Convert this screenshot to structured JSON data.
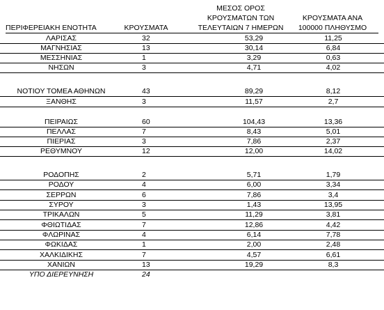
{
  "headers": {
    "region": "ΠΕΡΙΦΕΡΕΙΑΚΗ ΕΝΟΤΗΤΑ",
    "cases": "ΚΡΟΥΣΜΑΤΑ",
    "avg_lines": [
      "ΜΕΣΟΣ ΟΡΟΣ",
      "ΚΡΟΥΣΜΑΤΩΝ ΤΩΝ",
      "ΤΕΛΕΥΤΑΙΩΝ 7 ΗΜΕΡΩΝ"
    ],
    "per_lines": [
      "ΚΡΟΥΣΜΑΤΑ ΑΝΑ",
      "100000 ΠΛΗΘΥΣΜΟ"
    ]
  },
  "rows": [
    {
      "region": "ΛΑΡΙΣΑΣ",
      "cases": "32",
      "avg": "53,29",
      "per100k": "11,25"
    },
    {
      "region": "ΜΑΓΝΗΣΙΑΣ",
      "cases": "13",
      "avg": "30,14",
      "per100k": "6,84"
    },
    {
      "region": "ΜΕΣΣΗΝΙΑΣ",
      "cases": "1",
      "avg": "3,29",
      "per100k": "0,63"
    },
    {
      "region": "ΝΗΣΩΝ",
      "cases": "3",
      "avg": "4,71",
      "per100k": "4,02"
    },
    {
      "region": "ΝΟΤΙΟΥ ΤΟΜΕΑ ΑΘΗΝΩΝ",
      "cases": "43",
      "avg": "89,29",
      "per100k": "8,12"
    },
    {
      "region": "ΞΑΝΘΗΣ",
      "cases": "3",
      "avg": "11,57",
      "per100k": "2,7"
    },
    {
      "region": "ΠΕΙΡΑΙΩΣ",
      "cases": "60",
      "avg": "104,43",
      "per100k": "13,36"
    },
    {
      "region": "ΠΕΛΛΑΣ",
      "cases": "7",
      "avg": "8,43",
      "per100k": "5,01"
    },
    {
      "region": "ΠΙΕΡΙΑΣ",
      "cases": "3",
      "avg": "7,86",
      "per100k": "2,37"
    },
    {
      "region": "ΡΕΘΥΜΝΟΥ",
      "cases": "12",
      "avg": "12,00",
      "per100k": "14,02"
    },
    {
      "region": "ΡΟΔΟΠΗΣ",
      "cases": "2",
      "avg": "5,71",
      "per100k": "1,79"
    },
    {
      "region": "ΡΟΔΟΥ",
      "cases": "4",
      "avg": "6,00",
      "per100k": "3,34"
    },
    {
      "region": "ΣΕΡΡΩΝ",
      "cases": "6",
      "avg": "7,86",
      "per100k": "3,4"
    },
    {
      "region": "ΣΥΡΟΥ",
      "cases": "3",
      "avg": "1,43",
      "per100k": "13,95"
    },
    {
      "region": "ΤΡΙΚΑΛΩΝ",
      "cases": "5",
      "avg": "11,29",
      "per100k": "3,81"
    },
    {
      "region": "ΦΘΙΩΤΙΔΑΣ",
      "cases": "7",
      "avg": "12,86",
      "per100k": "4,42"
    },
    {
      "region": "ΦΛΩΡΙΝΑΣ",
      "cases": "4",
      "avg": "6,14",
      "per100k": "7,78"
    },
    {
      "region": "ΦΩΚΙΔΑΣ",
      "cases": "1",
      "avg": "2,00",
      "per100k": "2,48"
    },
    {
      "region": "ΧΑΛΚΙΔΙΚΗΣ",
      "cases": "7",
      "avg": "4,57",
      "per100k": "6,61"
    },
    {
      "region": "ΧΑΝΙΩΝ",
      "cases": "13",
      "avg": "19,29",
      "per100k": "8,3"
    },
    {
      "region": "ΥΠΟ ΔΙΕΡΕΥΝΗΣΗ",
      "cases": "24",
      "avg": "",
      "per100k": "",
      "italic": true
    }
  ]
}
